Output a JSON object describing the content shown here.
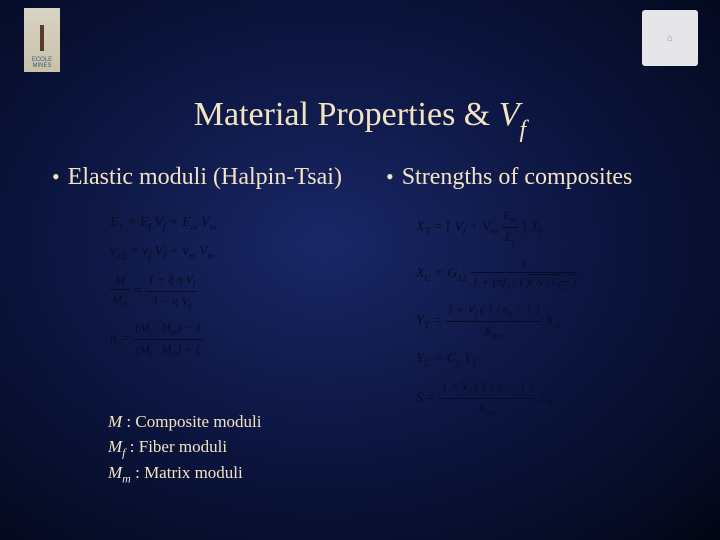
{
  "logos": {
    "left_label": "ECOLE\nMINES",
    "right_label": "⌂"
  },
  "title": {
    "prefix": "Material Properties & ",
    "var": "V",
    "varsub": "f"
  },
  "bullets": {
    "left": "Elastic moduli (Halpin-Tsai)",
    "right": "Strengths of composites"
  },
  "equations_left": [
    "E<sub>1</sub> = E<sub>f</sub> V<sub>f</sub> + E<sub>m</sub> V<sub>m</sub>",
    "ν<sub>12</sub> = ν<sub>f</sub> V<sub>f</sub> + ν<sub>m</sub> V<sub>m</sub>",
    "<span class='frac'><span class='n'>M</span><span class='d'>M<sub>m</sub></span></span> = <span class='frac'><span class='n'>1 + ξ η V<sub>f</sub></span><span class='d'>1 − η V<sub>f</sub></span></span>",
    "η = <span class='frac'><span class='n'>(M<sub>f</sub> / M<sub>m</sub>) − 1</span><span class='d'>(M<sub>f</sub> / M<sub>m</sub>) + ξ</span></span>"
  ],
  "equations_right": [
    "X<sub>T</sub> = <span class='brk'>[</span> V<sub>f</sub> + V<sub>m</sub> <span class='frac'><span class='n'>E<sub>m</sub></span><span class='d'>E<sub>f</sub></span></span> <span class='brk'>]</span> X<sub>f</sub>",
    "X<sub>C</sub> = G<sub>12</sub> <span class='frac'><span class='n'>1</span><span class='d'>1 + (πf<sub>0</sub> / l )<span class='sqrt'>( S / G<sub>12</sub> )</span></span></span>",
    "Y<sub>T</sub> = <span class='frac'><span class='n'>1 + V<sub>f</sub> ( 1 / η<sub>y</sub> − 1 )</span><span class='d'>K<sub>mσ</sub></span></span> X<sub>m</sub>",
    "Y<sub>C</sub> = C<sub>y</sub> Y<sub>T</sub>",
    "S = <span class='frac'><span class='n'>1 + V<sub>f</sub> ( 1 / η<sub>s</sub> − 1 )</span><span class='d'>K<sub>mτ</sub></span></span> S<sub>m</sub>"
  ],
  "legend": [
    {
      "sym": "M",
      "sub": "",
      "text": " : Composite moduli"
    },
    {
      "sym": "M",
      "sub": "f",
      "text": " : Fiber moduli"
    },
    {
      "sym": "M",
      "sub": "m",
      "text": " : Matrix moduli"
    }
  ],
  "colors": {
    "text_accent": "#f2e4c2",
    "eq_color": "#080c22",
    "bg_center": "#1a2768",
    "bg_edge": "#020512"
  }
}
